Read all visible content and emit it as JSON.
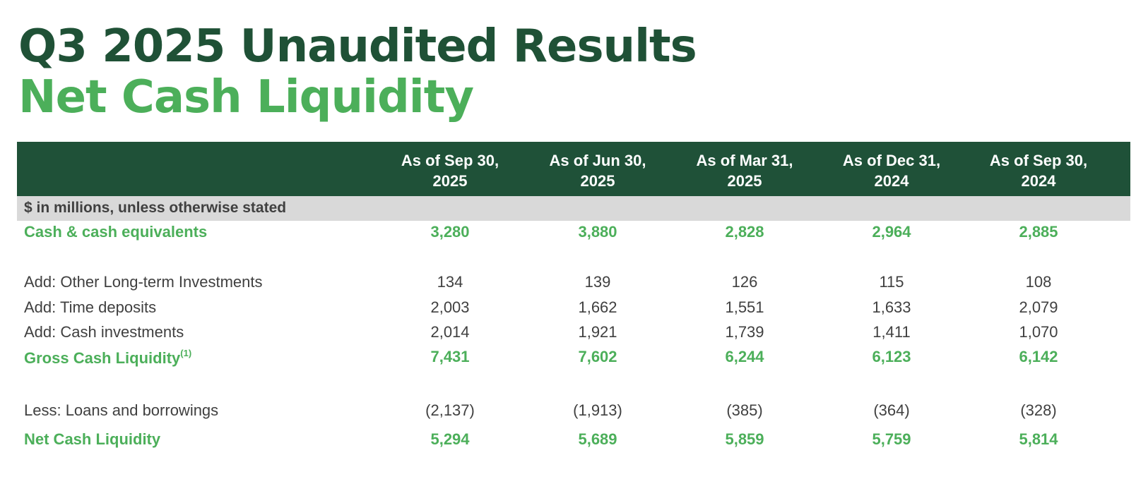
{
  "title": "Q3 2025 Unaudited Results",
  "subtitle": "Net Cash Liquidity",
  "table": {
    "columns": [
      {
        "line1": "As of Sep 30,",
        "line2": "2025"
      },
      {
        "line1": "As of Jun 30,",
        "line2": "2025"
      },
      {
        "line1": "As of Mar 31,",
        "line2": "2025"
      },
      {
        "line1": "As of Dec 31,",
        "line2": "2024"
      },
      {
        "line1": "As of Sep 30,",
        "line2": "2024"
      }
    ],
    "units_note": "$ in millions, unless otherwise stated",
    "rows": [
      {
        "label": "Cash & cash equivalents",
        "values": [
          "3,280",
          "3,880",
          "2,828",
          "2,964",
          "2,885"
        ]
      },
      {
        "label": "Add: Other Long-term Investments",
        "values": [
          "134",
          "139",
          "126",
          "115",
          "108"
        ]
      },
      {
        "label": "Add: Time deposits",
        "values": [
          "2,003",
          "1,662",
          "1,551",
          "1,633",
          "2,079"
        ]
      },
      {
        "label": "Add: Cash investments",
        "values": [
          "2,014",
          "1,921",
          "1,739",
          "1,411",
          "1,070"
        ]
      },
      {
        "label": "Gross Cash Liquidity",
        "footnote": "(1)",
        "values": [
          "7,431",
          "7,602",
          "6,244",
          "6,123",
          "6,142"
        ]
      },
      {
        "label": "Less: Loans and borrowings",
        "values": [
          "(2,137)",
          "(1,913)",
          "(385)",
          "(364)",
          "(328)"
        ]
      },
      {
        "label": "Net Cash Liquidity",
        "values": [
          "5,294",
          "5,689",
          "5,859",
          "5,759",
          "5,814"
        ]
      }
    ]
  },
  "colors": {
    "dark_green": "#1f5136",
    "light_green": "#4caf5a",
    "header_bg": "#1f5138",
    "subheader_bg": "#d9d9d9",
    "body_text": "#404040"
  }
}
